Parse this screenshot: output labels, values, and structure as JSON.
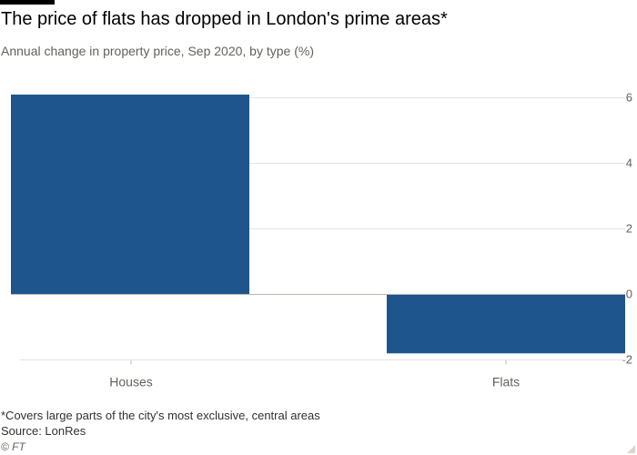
{
  "header": {
    "title": "The price of flats has dropped in London's prime areas*",
    "subtitle": "Annual change in property price, Sep 2020, by type (%)"
  },
  "footer": {
    "footnote": "*Covers large parts of the city's most exclusive, central areas",
    "source": "Source: LonRes",
    "copyright": "© FT"
  },
  "colors": {
    "bar": "#1e558c",
    "grid": "#e6e3df",
    "zero_line": "#bdb8b3",
    "tick_text": "#66605c"
  },
  "chart_data": {
    "type": "bar",
    "categories": [
      "Houses",
      "Flats"
    ],
    "values": [
      6.1,
      -1.8
    ],
    "ylim": [
      -2,
      6
    ],
    "yticks": [
      6,
      4,
      2,
      0,
      -2
    ],
    "ytick_labels": [
      "6",
      "4",
      "2",
      "0",
      "-2"
    ],
    "y_axis_side": "right",
    "grid": true,
    "title": "The price of flats has dropped in London's prime areas*",
    "subtitle": "Annual change in property price, Sep 2020, by type (%)",
    "xlabel": "",
    "ylabel": ""
  }
}
